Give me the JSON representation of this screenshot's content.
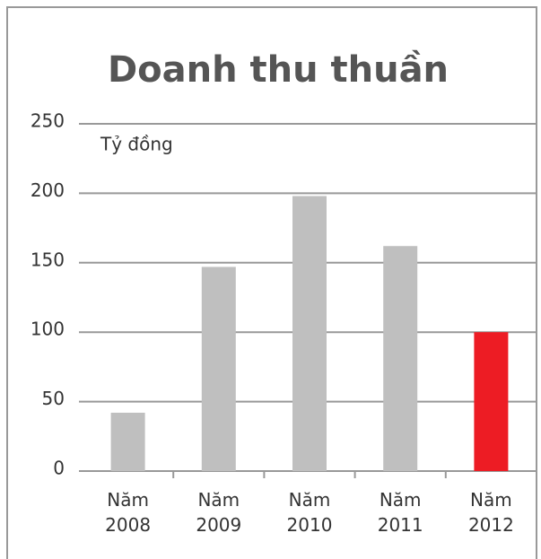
{
  "chart_data": {
    "type": "bar",
    "title": "Doanh thu thuần",
    "y_label": "Tỷ đồng",
    "categories": [
      "Năm 2008",
      "Năm 2009",
      "Năm 2010",
      "Năm 2011",
      "Năm 2012"
    ],
    "values": [
      42,
      147,
      198,
      162,
      100
    ],
    "colors": [
      "#bfbfbf",
      "#bfbfbf",
      "#bfbfbf",
      "#bfbfbf",
      "#ed1c24"
    ],
    "ylim": [
      0,
      250
    ],
    "yticks": [
      0,
      50,
      100,
      150,
      200,
      250
    ],
    "grid": true
  }
}
